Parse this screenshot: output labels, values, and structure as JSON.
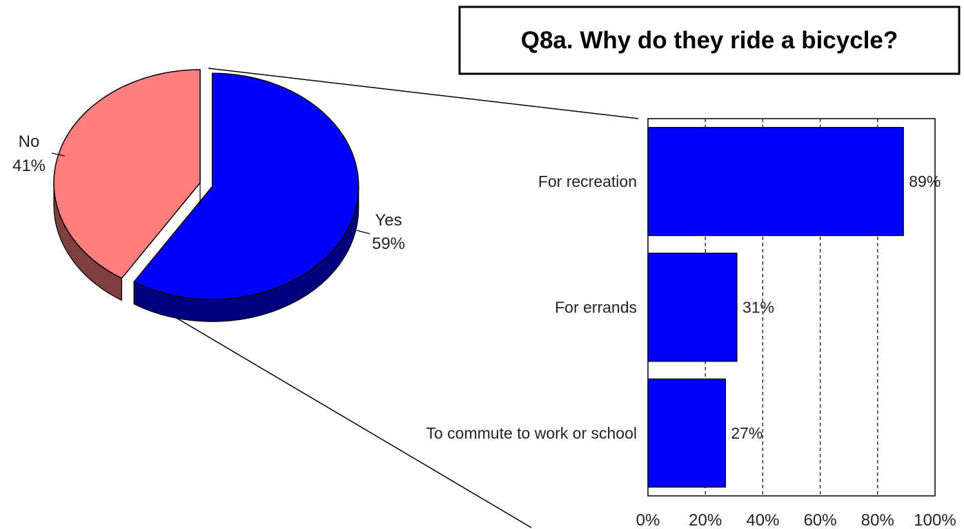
{
  "chart_data": [
    {
      "type": "pie",
      "slices": [
        {
          "label": "Yes",
          "value": 59,
          "value_label": "59%",
          "color": "#0000ff",
          "side_color": "#00007f",
          "exploded": true
        },
        {
          "label": "No",
          "value": 41,
          "value_label": "41%",
          "color": "#ff7f7f",
          "side_color": "#7f3f3f",
          "exploded": false
        }
      ],
      "style": "3d-exploded",
      "title": ""
    },
    {
      "type": "bar",
      "orientation": "horizontal",
      "title": "Q8a. Why do they ride a bicycle?",
      "categories": [
        "For recreation",
        "For errands",
        "To commute to work or school"
      ],
      "values": [
        89,
        31,
        27
      ],
      "value_labels": [
        "89%",
        "31%",
        "27%"
      ],
      "bar_color": "#0000ff",
      "xlim": [
        0,
        100
      ],
      "x_ticks": [
        0,
        20,
        40,
        60,
        80,
        100
      ],
      "x_tick_labels": [
        "0%",
        "20%",
        "40%",
        "60%",
        "80%",
        "100%"
      ],
      "grid": "vertical-dashed",
      "xlabel": "",
      "ylabel": ""
    }
  ]
}
